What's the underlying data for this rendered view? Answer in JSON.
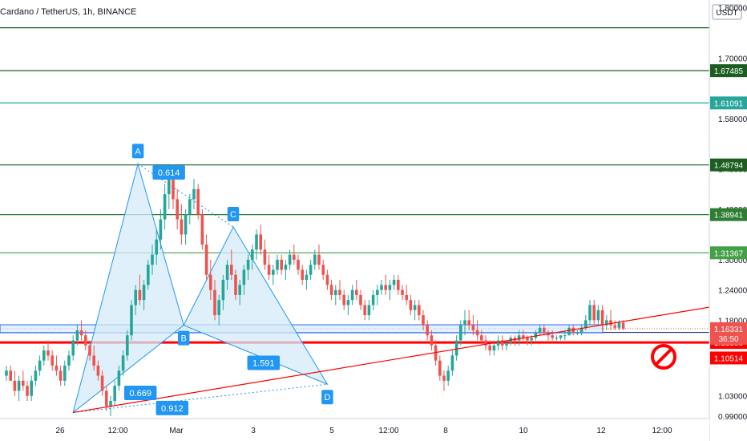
{
  "header": {
    "title": "Cardano / TetherUS, 1h, BINANCE",
    "currency_badge": "USDT"
  },
  "colors": {
    "bull": "#26a69a",
    "bear": "#ef5350",
    "fib_dark": "#1b5e20",
    "fib_green": "#43a047",
    "fib_teal": "#26a69a",
    "blue": "#2962ff",
    "red_line": "#ff0000",
    "pattern_fill": "#d6ebf8",
    "pattern_edge": "#2196f3",
    "label_bg": "#2196f3"
  },
  "stop_icon": "no-entry-icon",
  "chart_data": {
    "type": "candlestick",
    "ylim": [
      0.985,
      1.815
    ],
    "y_ticks": [
      "1.80000",
      "1.70000",
      "1.58000",
      "1.48000",
      "1.40000",
      "1.30000",
      "1.24000",
      "1.18000",
      "1.03000",
      "0.99000"
    ],
    "x_ticks": [
      "26",
      "12:00",
      "Mar",
      "3",
      "5",
      "12:00",
      "8",
      "10",
      "12",
      "12:00"
    ],
    "price_levels": [
      {
        "value": 1.76,
        "label": "",
        "color": "#1b5e20"
      },
      {
        "value": 1.67485,
        "label": "1.67485",
        "color": "#1b5e20"
      },
      {
        "value": 1.61091,
        "label": "1.61091",
        "color": "#26a69a"
      },
      {
        "value": 1.48794,
        "label": "1.48794",
        "color": "#1b5e20"
      },
      {
        "value": 1.38941,
        "label": "1.38941",
        "color": "#2e7d32"
      },
      {
        "value": 1.31367,
        "label": "1.31367",
        "color": "#43a047"
      },
      {
        "value": 1.15581,
        "label": "1.15581",
        "color": "#1e3a8a"
      },
      {
        "value": 1.13588,
        "label": "1.13588",
        "color": "#ff0000"
      },
      {
        "value": 1.10514,
        "label": "1.10514",
        "color": "#ff0000"
      }
    ],
    "current_price": {
      "value": 1.16331,
      "label": "1.16331",
      "countdown": "36:50"
    },
    "harmonic_pattern": {
      "points": [
        {
          "name": "X",
          "t": 0.0,
          "y": 0.997
        },
        {
          "name": "A",
          "t": 0.255,
          "y": 1.49
        },
        {
          "name": "B",
          "t": 0.435,
          "y": 1.17
        },
        {
          "name": "C",
          "t": 0.63,
          "y": 1.365
        },
        {
          "name": "D",
          "t": 1.0,
          "y": 1.053
        }
      ],
      "labels": [
        "A",
        "B",
        "C",
        "D"
      ],
      "ratios": [
        {
          "text": "0.614",
          "between": "XA-AB"
        },
        {
          "text": "0.669",
          "between": "XA-XB"
        },
        {
          "text": "1.591",
          "between": "BC-BD"
        },
        {
          "text": "0.912",
          "between": "XD"
        }
      ]
    },
    "trendline": {
      "from": {
        "x": "26",
        "y": 0.997
      },
      "slope_per_hour": 0.00072
    },
    "candles": [
      [
        1.07,
        1.09,
        1.06,
        1.08
      ],
      [
        1.08,
        1.09,
        1.06,
        1.06
      ],
      [
        1.06,
        1.08,
        1.03,
        1.04
      ],
      [
        1.04,
        1.07,
        1.02,
        1.06
      ],
      [
        1.06,
        1.08,
        1.04,
        1.05
      ],
      [
        1.05,
        1.06,
        1.02,
        1.03
      ],
      [
        1.03,
        1.07,
        1.02,
        1.06
      ],
      [
        1.06,
        1.09,
        1.05,
        1.08
      ],
      [
        1.08,
        1.11,
        1.07,
        1.1
      ],
      [
        1.1,
        1.13,
        1.09,
        1.12
      ],
      [
        1.12,
        1.14,
        1.1,
        1.11
      ],
      [
        1.11,
        1.12,
        1.08,
        1.09
      ],
      [
        1.09,
        1.11,
        1.07,
        1.08
      ],
      [
        1.08,
        1.09,
        1.05,
        1.06
      ],
      [
        1.06,
        1.1,
        1.05,
        1.09
      ],
      [
        1.09,
        1.12,
        1.08,
        1.11
      ],
      [
        1.11,
        1.15,
        1.1,
        1.14
      ],
      [
        1.14,
        1.17,
        1.13,
        1.16
      ],
      [
        1.16,
        1.18,
        1.14,
        1.15
      ],
      [
        1.15,
        1.16,
        1.12,
        1.13
      ],
      [
        1.13,
        1.14,
        1.1,
        1.11
      ],
      [
        1.11,
        1.13,
        1.08,
        1.09
      ],
      [
        1.09,
        1.1,
        1.06,
        1.07
      ],
      [
        1.07,
        1.08,
        1.03,
        1.04
      ],
      [
        1.04,
        1.05,
        1.0,
        1.01
      ],
      [
        1.01,
        1.03,
        0.99,
        1.02
      ],
      [
        1.02,
        1.06,
        1.01,
        1.05
      ],
      [
        1.05,
        1.09,
        1.04,
        1.08
      ],
      [
        1.08,
        1.12,
        1.07,
        1.11
      ],
      [
        1.11,
        1.16,
        1.1,
        1.15
      ],
      [
        1.15,
        1.22,
        1.14,
        1.21
      ],
      [
        1.21,
        1.25,
        1.19,
        1.24
      ],
      [
        1.24,
        1.27,
        1.21,
        1.22
      ],
      [
        1.22,
        1.26,
        1.2,
        1.25
      ],
      [
        1.25,
        1.3,
        1.24,
        1.29
      ],
      [
        1.29,
        1.33,
        1.27,
        1.31
      ],
      [
        1.31,
        1.36,
        1.29,
        1.34
      ],
      [
        1.34,
        1.4,
        1.32,
        1.38
      ],
      [
        1.38,
        1.45,
        1.36,
        1.43
      ],
      [
        1.43,
        1.49,
        1.4,
        1.46
      ],
      [
        1.46,
        1.48,
        1.4,
        1.42
      ],
      [
        1.42,
        1.44,
        1.36,
        1.38
      ],
      [
        1.38,
        1.41,
        1.33,
        1.35
      ],
      [
        1.35,
        1.4,
        1.33,
        1.39
      ],
      [
        1.39,
        1.43,
        1.37,
        1.42
      ],
      [
        1.42,
        1.46,
        1.4,
        1.44
      ],
      [
        1.44,
        1.45,
        1.38,
        1.39
      ],
      [
        1.39,
        1.4,
        1.32,
        1.33
      ],
      [
        1.33,
        1.35,
        1.26,
        1.27
      ],
      [
        1.27,
        1.3,
        1.22,
        1.24
      ],
      [
        1.24,
        1.26,
        1.18,
        1.19
      ],
      [
        1.19,
        1.23,
        1.17,
        1.22
      ],
      [
        1.22,
        1.27,
        1.2,
        1.26
      ],
      [
        1.26,
        1.3,
        1.24,
        1.29
      ],
      [
        1.29,
        1.32,
        1.26,
        1.27
      ],
      [
        1.27,
        1.28,
        1.22,
        1.23
      ],
      [
        1.23,
        1.26,
        1.21,
        1.25
      ],
      [
        1.25,
        1.29,
        1.23,
        1.28
      ],
      [
        1.28,
        1.31,
        1.26,
        1.3
      ],
      [
        1.3,
        1.33,
        1.28,
        1.32
      ],
      [
        1.32,
        1.36,
        1.3,
        1.35
      ],
      [
        1.35,
        1.37,
        1.31,
        1.32
      ],
      [
        1.32,
        1.34,
        1.28,
        1.29
      ],
      [
        1.29,
        1.31,
        1.26,
        1.27
      ],
      [
        1.27,
        1.29,
        1.25,
        1.28
      ],
      [
        1.28,
        1.31,
        1.27,
        1.3
      ],
      [
        1.3,
        1.31,
        1.27,
        1.28
      ],
      [
        1.28,
        1.3,
        1.26,
        1.29
      ],
      [
        1.29,
        1.32,
        1.28,
        1.31
      ],
      [
        1.31,
        1.33,
        1.29,
        1.3
      ],
      [
        1.3,
        1.31,
        1.27,
        1.28
      ],
      [
        1.28,
        1.29,
        1.25,
        1.26
      ],
      [
        1.26,
        1.28,
        1.24,
        1.27
      ],
      [
        1.27,
        1.3,
        1.26,
        1.29
      ],
      [
        1.29,
        1.32,
        1.28,
        1.31
      ],
      [
        1.31,
        1.33,
        1.28,
        1.29
      ],
      [
        1.29,
        1.3,
        1.26,
        1.27
      ],
      [
        1.27,
        1.28,
        1.24,
        1.25
      ],
      [
        1.25,
        1.26,
        1.22,
        1.23
      ],
      [
        1.23,
        1.25,
        1.21,
        1.24
      ],
      [
        1.24,
        1.26,
        1.22,
        1.23
      ],
      [
        1.23,
        1.24,
        1.2,
        1.21
      ],
      [
        1.21,
        1.23,
        1.19,
        1.22
      ],
      [
        1.22,
        1.25,
        1.21,
        1.24
      ],
      [
        1.24,
        1.26,
        1.22,
        1.23
      ],
      [
        1.23,
        1.24,
        1.2,
        1.21
      ],
      [
        1.21,
        1.22,
        1.18,
        1.19
      ],
      [
        1.19,
        1.22,
        1.18,
        1.21
      ],
      [
        1.21,
        1.24,
        1.2,
        1.23
      ],
      [
        1.23,
        1.25,
        1.21,
        1.24
      ],
      [
        1.24,
        1.26,
        1.23,
        1.25
      ],
      [
        1.25,
        1.27,
        1.23,
        1.24
      ],
      [
        1.24,
        1.26,
        1.22,
        1.25
      ],
      [
        1.25,
        1.27,
        1.24,
        1.26
      ],
      [
        1.26,
        1.27,
        1.23,
        1.24
      ],
      [
        1.24,
        1.25,
        1.22,
        1.23
      ],
      [
        1.23,
        1.25,
        1.21,
        1.22
      ],
      [
        1.22,
        1.23,
        1.19,
        1.2
      ],
      [
        1.2,
        1.22,
        1.18,
        1.21
      ],
      [
        1.21,
        1.22,
        1.18,
        1.19
      ],
      [
        1.19,
        1.2,
        1.16,
        1.17
      ],
      [
        1.17,
        1.18,
        1.14,
        1.15
      ],
      [
        1.15,
        1.16,
        1.12,
        1.13
      ],
      [
        1.13,
        1.14,
        1.09,
        1.1
      ],
      [
        1.1,
        1.11,
        1.06,
        1.07
      ],
      [
        1.07,
        1.08,
        1.04,
        1.06
      ],
      [
        1.06,
        1.09,
        1.05,
        1.08
      ],
      [
        1.08,
        1.12,
        1.07,
        1.11
      ],
      [
        1.11,
        1.15,
        1.1,
        1.14
      ],
      [
        1.14,
        1.18,
        1.13,
        1.17
      ],
      [
        1.17,
        1.2,
        1.15,
        1.18
      ],
      [
        1.18,
        1.2,
        1.16,
        1.17
      ],
      [
        1.17,
        1.19,
        1.15,
        1.16
      ],
      [
        1.16,
        1.18,
        1.14,
        1.15
      ],
      [
        1.15,
        1.16,
        1.13,
        1.14
      ],
      [
        1.14,
        1.15,
        1.12,
        1.13
      ],
      [
        1.13,
        1.14,
        1.11,
        1.12
      ],
      [
        1.12,
        1.14,
        1.11,
        1.13
      ],
      [
        1.13,
        1.15,
        1.12,
        1.14
      ],
      [
        1.14,
        1.15,
        1.12,
        1.13
      ],
      [
        1.13,
        1.14,
        1.12,
        1.135
      ],
      [
        1.135,
        1.15,
        1.13,
        1.145
      ],
      [
        1.145,
        1.15,
        1.13,
        1.14
      ],
      [
        1.14,
        1.16,
        1.13,
        1.15
      ],
      [
        1.15,
        1.16,
        1.14,
        1.145
      ],
      [
        1.145,
        1.15,
        1.13,
        1.14
      ],
      [
        1.14,
        1.15,
        1.13,
        1.145
      ],
      [
        1.145,
        1.16,
        1.14,
        1.155
      ],
      [
        1.155,
        1.17,
        1.15,
        1.165
      ],
      [
        1.165,
        1.17,
        1.15,
        1.155
      ],
      [
        1.155,
        1.16,
        1.14,
        1.15
      ],
      [
        1.15,
        1.16,
        1.14,
        1.145
      ],
      [
        1.145,
        1.15,
        1.14,
        1.145
      ],
      [
        1.145,
        1.15,
        1.14,
        1.15
      ],
      [
        1.15,
        1.16,
        1.14,
        1.15
      ],
      [
        1.15,
        1.17,
        1.15,
        1.165
      ],
      [
        1.165,
        1.17,
        1.15,
        1.155
      ],
      [
        1.155,
        1.16,
        1.15,
        1.155
      ],
      [
        1.155,
        1.17,
        1.15,
        1.165
      ],
      [
        1.165,
        1.19,
        1.16,
        1.18
      ],
      [
        1.18,
        1.22,
        1.17,
        1.21
      ],
      [
        1.21,
        1.22,
        1.17,
        1.18
      ],
      [
        1.18,
        1.21,
        1.17,
        1.2
      ],
      [
        1.2,
        1.21,
        1.16,
        1.17
      ],
      [
        1.17,
        1.19,
        1.16,
        1.18
      ],
      [
        1.18,
        1.2,
        1.16,
        1.17
      ],
      [
        1.17,
        1.18,
        1.16,
        1.165
      ],
      [
        1.165,
        1.18,
        1.16,
        1.175
      ],
      [
        1.175,
        1.18,
        1.16,
        1.163
      ]
    ]
  }
}
